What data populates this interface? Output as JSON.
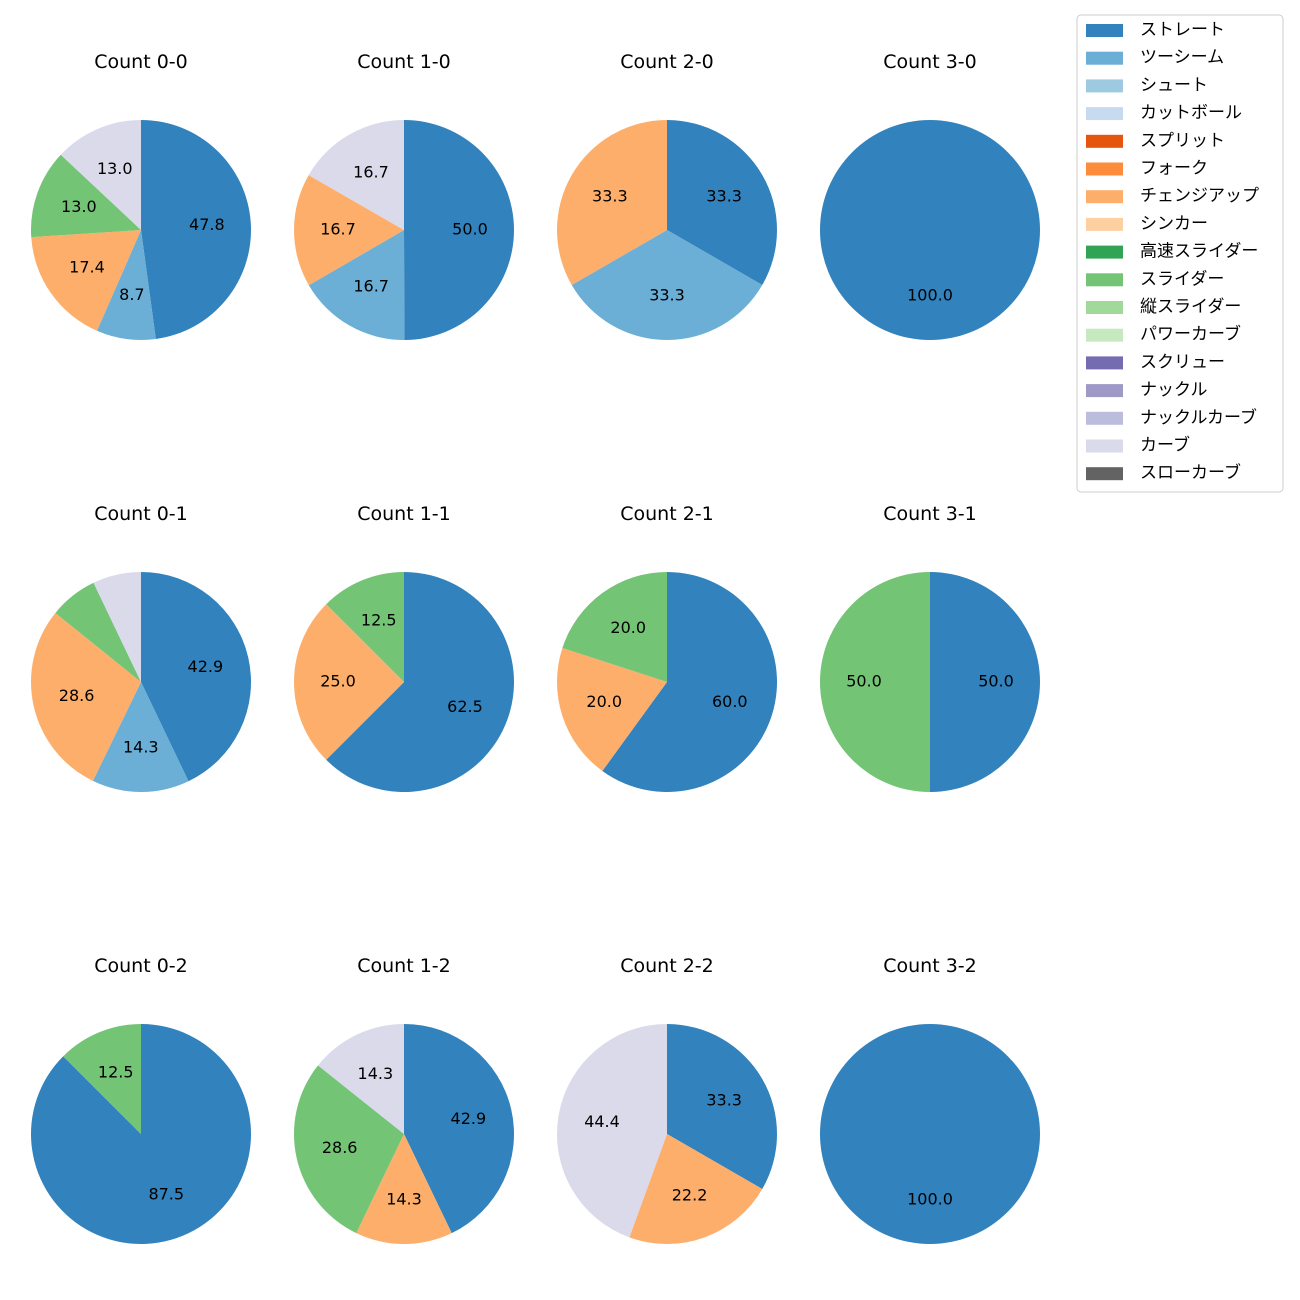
{
  "legend_entries": [
    {
      "name": "ストレート",
      "color": "#3182bd"
    },
    {
      "name": "ツーシーム",
      "color": "#6baed6"
    },
    {
      "name": "シュート",
      "color": "#9ecae1"
    },
    {
      "name": "カットボール",
      "color": "#c6dbef"
    },
    {
      "name": "スプリット",
      "color": "#e6550d"
    },
    {
      "name": "フォーク",
      "color": "#fd8d3c"
    },
    {
      "name": "チェンジアップ",
      "color": "#fdae6b"
    },
    {
      "name": "シンカー",
      "color": "#fdd0a2"
    },
    {
      "name": "高速スライダー",
      "color": "#31a354"
    },
    {
      "name": "スライダー",
      "color": "#74c476"
    },
    {
      "name": "縦スライダー",
      "color": "#a1d99b"
    },
    {
      "name": "パワーカーブ",
      "color": "#c7e9c0"
    },
    {
      "name": "スクリュー",
      "color": "#756bb1"
    },
    {
      "name": "ナックル",
      "color": "#9e9ac8"
    },
    {
      "name": "ナックルカーブ",
      "color": "#bcbddc"
    },
    {
      "name": "カーブ",
      "color": "#dadaeb"
    },
    {
      "name": "スローカーブ",
      "color": "#636363"
    }
  ],
  "legend_placement": "top-right",
  "chart_data": [
    {
      "type": "pie",
      "title": "Count 0-0",
      "slices": [
        {
          "name": "ストレート",
          "value": 47.8,
          "label": "47.8"
        },
        {
          "name": "ツーシーム",
          "value": 8.7,
          "label": "8.7"
        },
        {
          "name": "チェンジアップ",
          "value": 17.4,
          "label": "17.4"
        },
        {
          "name": "スライダー",
          "value": 13.0,
          "label": "13.0"
        },
        {
          "name": "カーブ",
          "value": 13.0,
          "label": "13.0"
        }
      ]
    },
    {
      "type": "pie",
      "title": "Count 1-0",
      "slices": [
        {
          "name": "ストレート",
          "value": 50.0,
          "label": "50.0"
        },
        {
          "name": "ツーシーム",
          "value": 16.7,
          "label": "16.7"
        },
        {
          "name": "チェンジアップ",
          "value": 16.7,
          "label": "16.7"
        },
        {
          "name": "カーブ",
          "value": 16.7,
          "label": "16.7"
        }
      ]
    },
    {
      "type": "pie",
      "title": "Count 2-0",
      "slices": [
        {
          "name": "ストレート",
          "value": 33.3,
          "label": "33.3"
        },
        {
          "name": "ツーシーム",
          "value": 33.3,
          "label": "33.3"
        },
        {
          "name": "チェンジアップ",
          "value": 33.3,
          "label": "33.3"
        }
      ]
    },
    {
      "type": "pie",
      "title": "Count 3-0",
      "slices": [
        {
          "name": "ストレート",
          "value": 100.0,
          "label": "100.0"
        }
      ]
    },
    {
      "type": "pie",
      "title": "Count 0-1",
      "slices": [
        {
          "name": "ストレート",
          "value": 42.9,
          "label": "42.9"
        },
        {
          "name": "ツーシーム",
          "value": 14.3,
          "label": "14.3"
        },
        {
          "name": "チェンジアップ",
          "value": 28.6,
          "label": "28.6"
        },
        {
          "name": "スライダー",
          "value": 7.1,
          "label": ""
        },
        {
          "name": "カーブ",
          "value": 7.1,
          "label": ""
        }
      ]
    },
    {
      "type": "pie",
      "title": "Count 1-1",
      "slices": [
        {
          "name": "ストレート",
          "value": 62.5,
          "label": "62.5"
        },
        {
          "name": "チェンジアップ",
          "value": 25.0,
          "label": "25.0"
        },
        {
          "name": "スライダー",
          "value": 12.5,
          "label": "12.5"
        }
      ]
    },
    {
      "type": "pie",
      "title": "Count 2-1",
      "slices": [
        {
          "name": "ストレート",
          "value": 60.0,
          "label": "60.0"
        },
        {
          "name": "チェンジアップ",
          "value": 20.0,
          "label": "20.0"
        },
        {
          "name": "スライダー",
          "value": 20.0,
          "label": "20.0"
        }
      ]
    },
    {
      "type": "pie",
      "title": "Count 3-1",
      "slices": [
        {
          "name": "ストレート",
          "value": 50.0,
          "label": "50.0"
        },
        {
          "name": "スライダー",
          "value": 50.0,
          "label": "50.0"
        }
      ]
    },
    {
      "type": "pie",
      "title": "Count 0-2",
      "slices": [
        {
          "name": "ストレート",
          "value": 87.5,
          "label": "87.5"
        },
        {
          "name": "スライダー",
          "value": 12.5,
          "label": "12.5"
        }
      ]
    },
    {
      "type": "pie",
      "title": "Count 1-2",
      "slices": [
        {
          "name": "ストレート",
          "value": 42.9,
          "label": "42.9"
        },
        {
          "name": "チェンジアップ",
          "value": 14.3,
          "label": "14.3"
        },
        {
          "name": "スライダー",
          "value": 28.6,
          "label": "28.6"
        },
        {
          "name": "カーブ",
          "value": 14.3,
          "label": "14.3"
        }
      ]
    },
    {
      "type": "pie",
      "title": "Count 2-2",
      "slices": [
        {
          "name": "ストレート",
          "value": 33.3,
          "label": "33.3"
        },
        {
          "name": "チェンジアップ",
          "value": 22.2,
          "label": "22.2"
        },
        {
          "name": "カーブ",
          "value": 44.4,
          "label": "44.4"
        }
      ]
    },
    {
      "type": "pie",
      "title": "Count 3-2",
      "slices": [
        {
          "name": "ストレート",
          "value": 100.0,
          "label": "100.0"
        }
      ]
    }
  ]
}
